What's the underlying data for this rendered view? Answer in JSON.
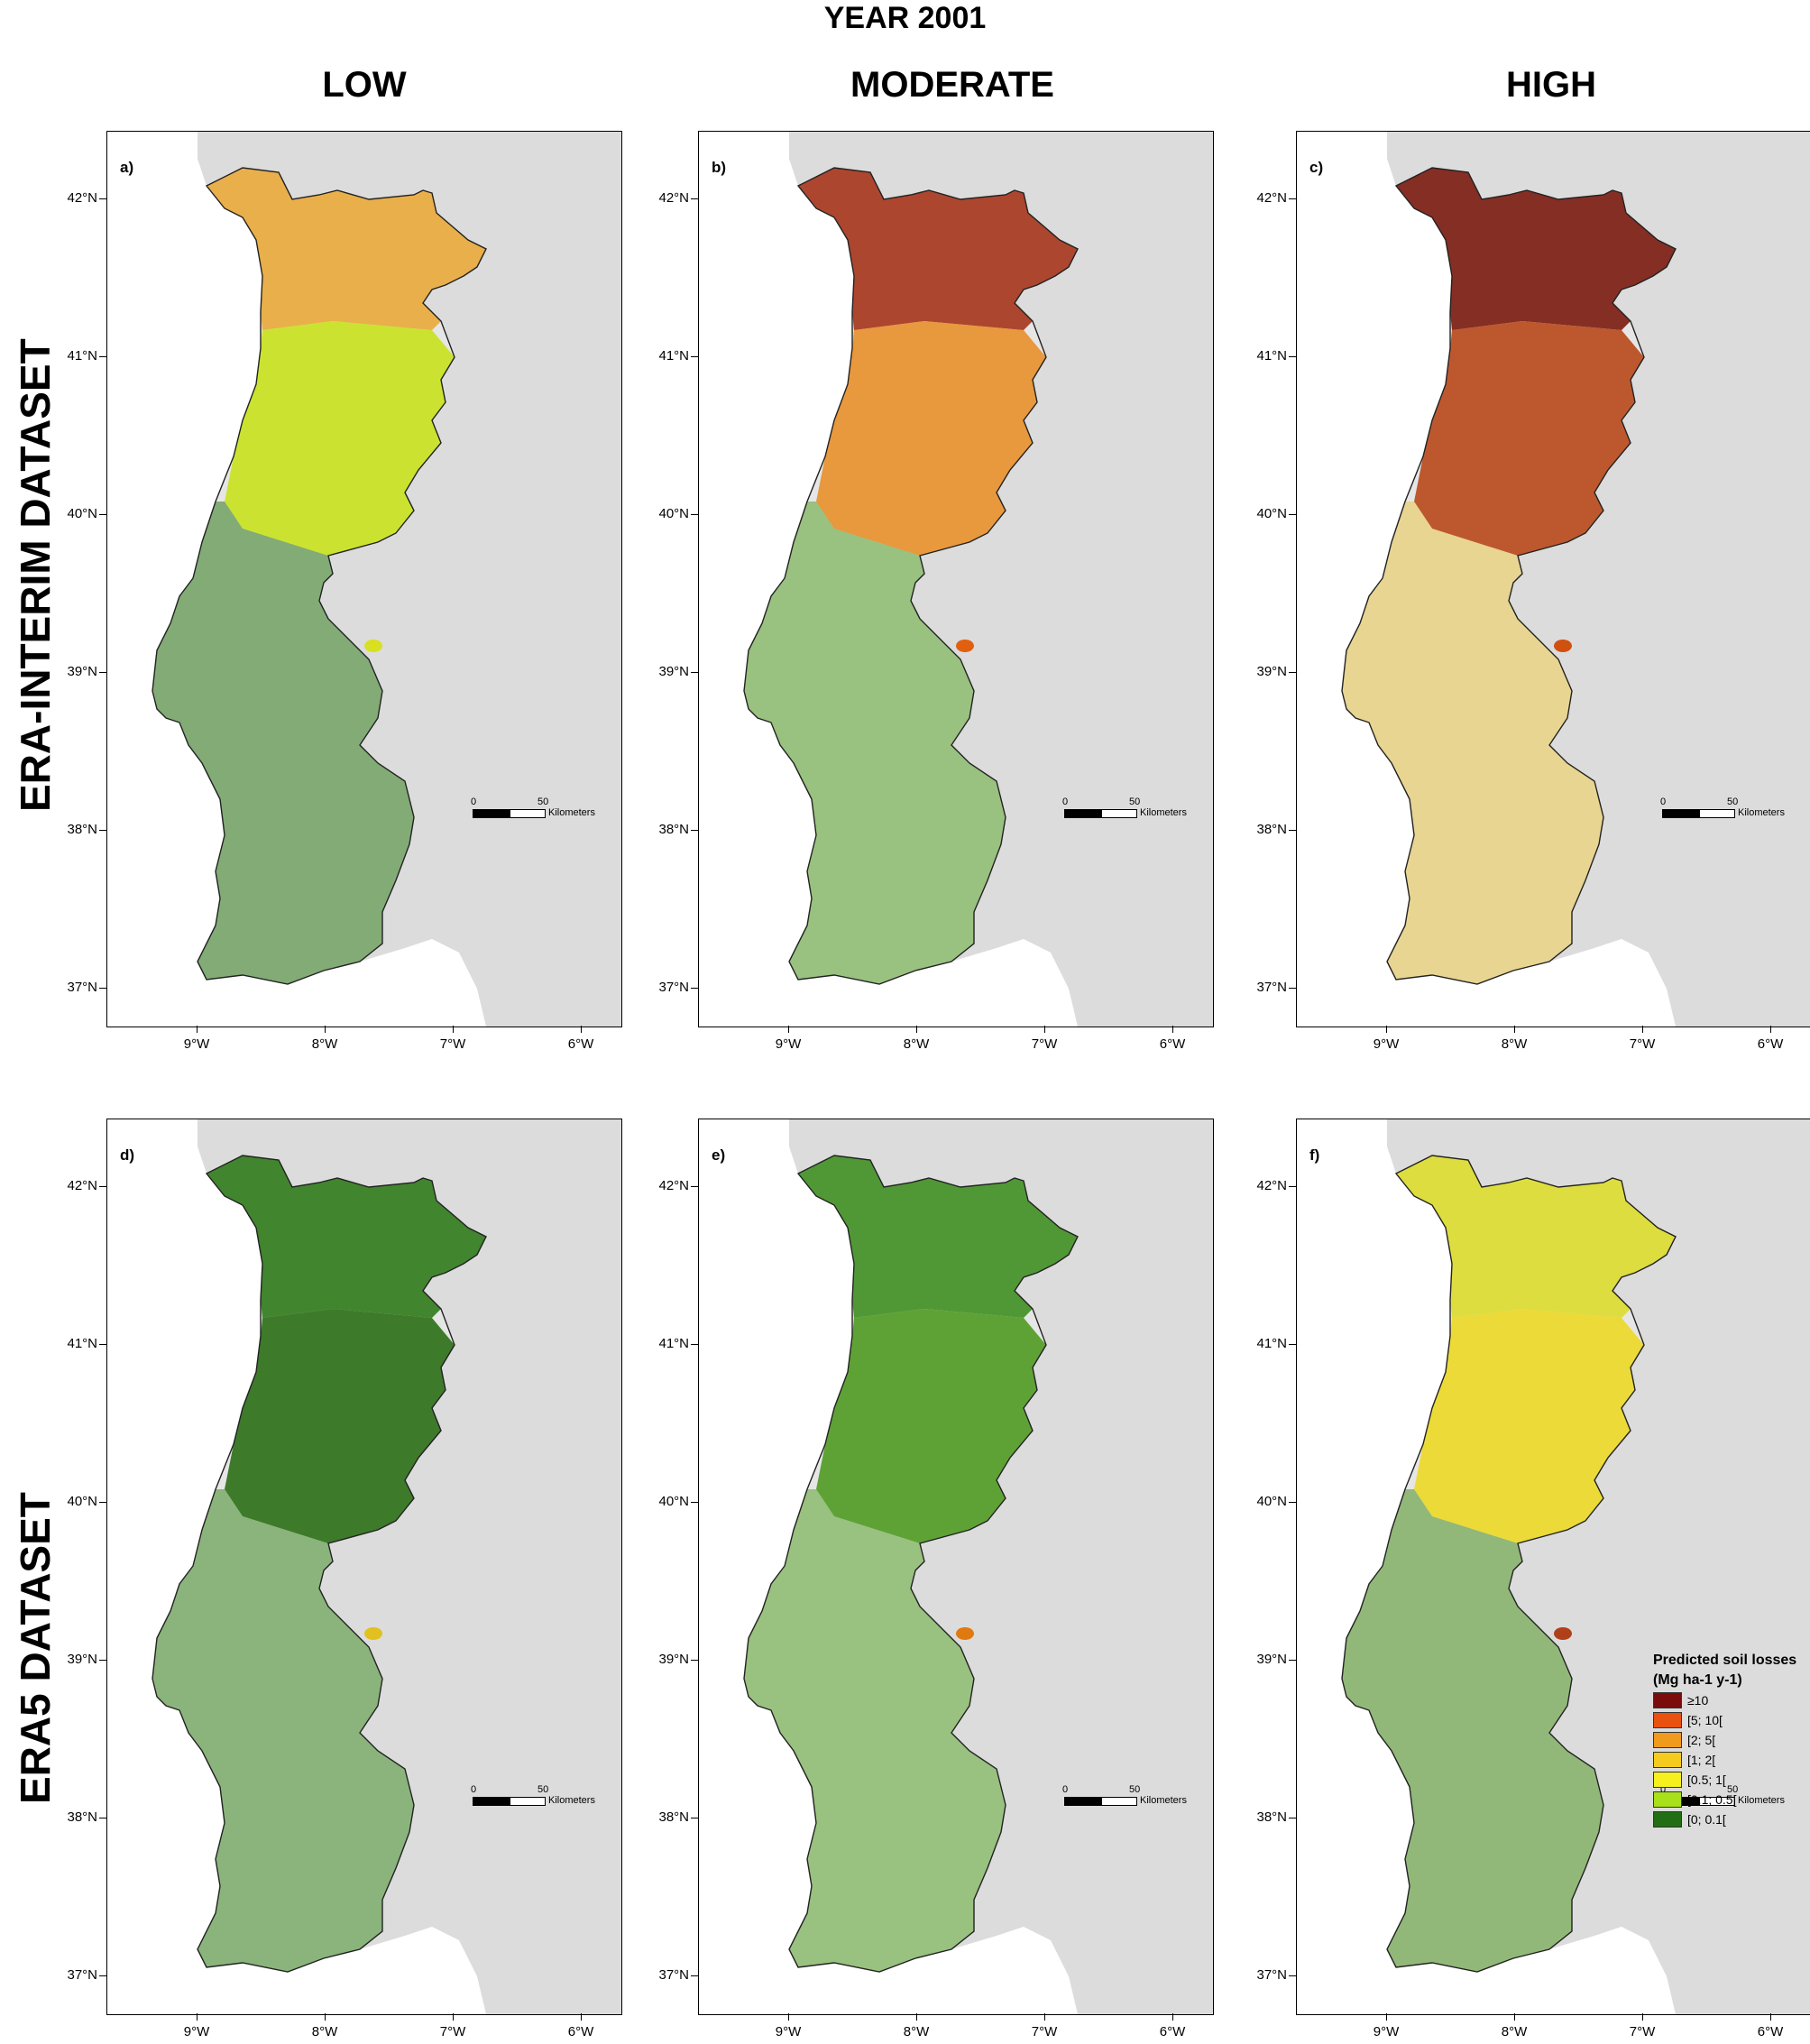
{
  "figure": {
    "title": "YEAR 2001",
    "columns": [
      "LOW",
      "MODERATE",
      "HIGH"
    ],
    "rows": [
      "ERA-INTERIM DATASET",
      "ERA5 DATASET"
    ]
  },
  "axes": {
    "lat_ticks": [
      "42°N",
      "41°N",
      "40°N",
      "39°N",
      "38°N",
      "37°N"
    ],
    "lon_ticks": [
      "9°W",
      "8°W",
      "7°W",
      "6°W"
    ]
  },
  "scalebar": {
    "zero": "0",
    "value": "50",
    "unit": "Kilometers"
  },
  "panels": [
    {
      "label": "a)",
      "row": "ERA-INTERIM DATASET",
      "scenario": "LOW",
      "north": "#e9a93a",
      "centre": "#c8e21c",
      "south": "#2f7a19",
      "spot": "#d8e020"
    },
    {
      "label": "b)",
      "row": "ERA-INTERIM DATASET",
      "scenario": "MODERATE",
      "north": "#a5341b",
      "centre": "#e88f2a",
      "south": "#5aa22a",
      "spot": "#e06010"
    },
    {
      "label": "c)",
      "row": "ERA-INTERIM DATASET",
      "scenario": "HIGH",
      "north": "#7a1a0e",
      "centre": "#b8481a",
      "south": "#e9c74a",
      "spot": "#d05010"
    },
    {
      "label": "d)",
      "row": "ERA5 DATASET",
      "scenario": "LOW",
      "north": "#2f7a19",
      "centre": "#2a6e15",
      "south": "#3e8a22",
      "spot": "#e2c020"
    },
    {
      "label": "e)",
      "row": "ERA5 DATASET",
      "scenario": "MODERATE",
      "north": "#3f8f22",
      "centre": "#4f9a22",
      "south": "#5aa22a",
      "spot": "#e07a10"
    },
    {
      "label": "f)",
      "row": "ERA5 DATASET",
      "scenario": "HIGH",
      "north": "#dcdc2e",
      "centre": "#ecd826",
      "south": "#4a921e",
      "spot": "#b0401a"
    }
  ],
  "legend": {
    "title_line1": "Predicted soil losses",
    "title_line2": "(Mg ha-1 y-1)",
    "classes": [
      {
        "label": "≥10",
        "color": "#7a0c0c"
      },
      {
        "label": "[5; 10[",
        "color": "#e8520e"
      },
      {
        "label": "[2; 5[",
        "color": "#f09a1e"
      },
      {
        "label": "[1; 2[",
        "color": "#f5cc1e"
      },
      {
        "label": "[0.5; 1[",
        "color": "#f5f01e"
      },
      {
        "label": "[0.1; 0.5[",
        "color": "#a8e01a"
      },
      {
        "label": "[0; 0.1[",
        "color": "#216e14"
      }
    ]
  }
}
